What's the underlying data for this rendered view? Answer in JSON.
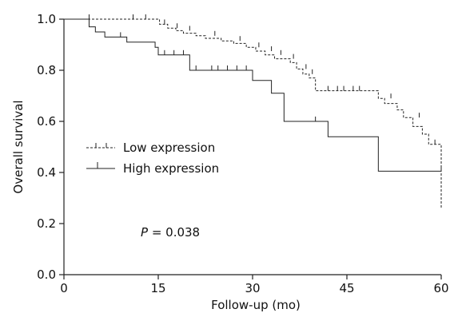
{
  "chart_data": {
    "type": "line",
    "subtype": "kaplan-meier",
    "xlabel": "Follow-up (mo)",
    "ylabel": "Overall survival",
    "xlim": [
      0,
      60
    ],
    "ylim": [
      0.0,
      1.0
    ],
    "xticks": [
      0,
      15,
      30,
      45,
      60
    ],
    "yticks": [
      0.0,
      0.2,
      0.4,
      0.6,
      0.8,
      1.0
    ],
    "yticklabels": [
      "0.0",
      "0.2",
      "0.4",
      "0.6",
      "0.8",
      "1.0"
    ],
    "grid": false,
    "legend_position": "middle-left",
    "annotation": {
      "italic": "P",
      "rest": " = 0.038"
    },
    "series": [
      {
        "name": "Low expression",
        "style": "dashed",
        "steps": [
          [
            0,
            1.0
          ],
          [
            15.2,
            0.98
          ],
          [
            16.5,
            0.965
          ],
          [
            17.8,
            0.955
          ],
          [
            19,
            0.945
          ],
          [
            21,
            0.935
          ],
          [
            22.5,
            0.925
          ],
          [
            25,
            0.915
          ],
          [
            27,
            0.905
          ],
          [
            29,
            0.89
          ],
          [
            30.5,
            0.875
          ],
          [
            32,
            0.86
          ],
          [
            33.5,
            0.845
          ],
          [
            36,
            0.83
          ],
          [
            37,
            0.805
          ],
          [
            38,
            0.785
          ],
          [
            39,
            0.77
          ],
          [
            40,
            0.72
          ],
          [
            50,
            0.69
          ],
          [
            51,
            0.67
          ],
          [
            53,
            0.645
          ],
          [
            54,
            0.615
          ],
          [
            55.5,
            0.58
          ],
          [
            57,
            0.55
          ],
          [
            58,
            0.51
          ],
          [
            60,
            0.26
          ]
        ],
        "censors": [
          [
            4,
            1.0
          ],
          [
            11,
            1.0
          ],
          [
            13,
            1.0
          ],
          [
            16,
            0.98
          ],
          [
            18,
            0.965
          ],
          [
            20,
            0.955
          ],
          [
            24,
            0.935
          ],
          [
            28,
            0.915
          ],
          [
            31,
            0.89
          ],
          [
            33,
            0.875
          ],
          [
            34.5,
            0.86
          ],
          [
            36.5,
            0.845
          ],
          [
            38.5,
            0.805
          ],
          [
            39.5,
            0.785
          ],
          [
            42,
            0.72
          ],
          [
            43.5,
            0.72
          ],
          [
            44.5,
            0.72
          ],
          [
            46,
            0.72
          ],
          [
            47,
            0.72
          ],
          [
            52,
            0.69
          ],
          [
            56.5,
            0.615
          ],
          [
            59,
            0.51
          ]
        ],
        "end_x": 60
      },
      {
        "name": "High expression",
        "style": "solid",
        "steps": [
          [
            0,
            1.0
          ],
          [
            4,
            0.97
          ],
          [
            5,
            0.95
          ],
          [
            6.5,
            0.93
          ],
          [
            10,
            0.91
          ],
          [
            14.5,
            0.89
          ],
          [
            15,
            0.86
          ],
          [
            20,
            0.8
          ],
          [
            30,
            0.76
          ],
          [
            33,
            0.71
          ],
          [
            35,
            0.6
          ],
          [
            42,
            0.54
          ],
          [
            50,
            0.405
          ]
        ],
        "censors": [
          [
            9,
            0.93
          ],
          [
            16,
            0.86
          ],
          [
            17.5,
            0.86
          ],
          [
            19,
            0.86
          ],
          [
            21,
            0.8
          ],
          [
            23.5,
            0.8
          ],
          [
            24.5,
            0.8
          ],
          [
            26,
            0.8
          ],
          [
            27.5,
            0.8
          ],
          [
            29,
            0.8
          ],
          [
            40,
            0.6
          ],
          [
            60,
            0.405
          ]
        ],
        "end_x": 60
      }
    ]
  }
}
